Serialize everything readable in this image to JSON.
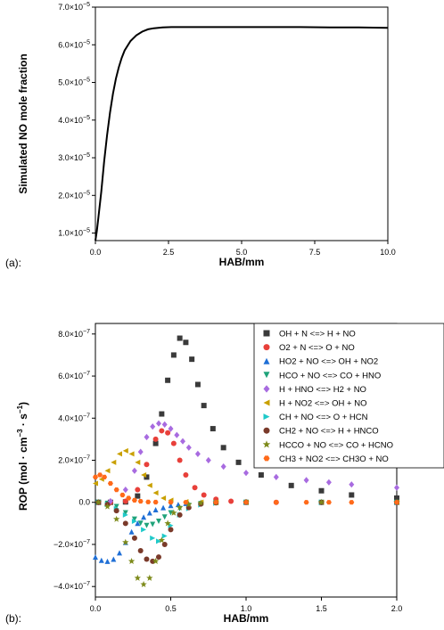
{
  "chart_data": [
    {
      "type": "line",
      "panel_label": "(a):",
      "xlabel": "HAB/mm",
      "ylabel": "Simulated NO mole fraction",
      "xlim": [
        0,
        10
      ],
      "ylim": [
        8e-06,
        7e-05
      ],
      "x_ticks": [
        0.0,
        2.5,
        5.0,
        7.5,
        10.0
      ],
      "x_tick_labels": [
        "0.0",
        "2.5",
        "5.0",
        "7.5",
        "10.0"
      ],
      "y_ticks": [
        1e-05,
        2e-05,
        3e-05,
        4e-05,
        5e-05,
        6e-05,
        7e-05
      ],
      "y_tick_labels": [
        {
          "mant": "1.0×10",
          "exp": "−5"
        },
        {
          "mant": "2.0×10",
          "exp": "−5"
        },
        {
          "mant": "3.0×10",
          "exp": "−5"
        },
        {
          "mant": "4.0×10",
          "exp": "−5"
        },
        {
          "mant": "5.0×10",
          "exp": "−5"
        },
        {
          "mant": "6.0×10",
          "exp": "−5"
        },
        {
          "mant": "7.0×10",
          "exp": "−5"
        }
      ],
      "grid": false,
      "series": [
        {
          "color": "#000000",
          "x": [
            0,
            0.05,
            0.1,
            0.2,
            0.3,
            0.4,
            0.5,
            0.6,
            0.7,
            0.8,
            0.9,
            1.0,
            1.2,
            1.4,
            1.6,
            1.8,
            2.0,
            2.3,
            2.6,
            3.0,
            3.5,
            4.0,
            5.0,
            6.0,
            7.0,
            8.0,
            9.0,
            10.0
          ],
          "y": [
            8e-06,
            1.05e-05,
            1.4e-05,
            2.1e-05,
            2.9e-05,
            3.6e-05,
            4.2e-05,
            4.7e-05,
            5.1e-05,
            5.4e-05,
            5.65e-05,
            5.85e-05,
            6.1e-05,
            6.25e-05,
            6.35e-05,
            6.41e-05,
            6.44e-05,
            6.46e-05,
            6.47e-05,
            6.47e-05,
            6.47e-05,
            6.47e-05,
            6.47e-05,
            6.47e-05,
            6.47e-05,
            6.46e-05,
            6.46e-05,
            6.45e-05
          ]
        }
      ]
    },
    {
      "type": "scatter",
      "panel_label": "(b):",
      "xlabel": "HAB/mm",
      "ylabel_parts": {
        "pre": "ROP (mol · cm",
        "sup1": "−3",
        "mid": " · s",
        "sup2": "−1",
        "post": ")"
      },
      "xlim": [
        0,
        2
      ],
      "ylim": [
        -4.5e-07,
        8.5e-07
      ],
      "x_ticks": [
        0.0,
        0.5,
        1.0,
        1.5,
        2.0
      ],
      "x_tick_labels": [
        "0.0",
        "0.5",
        "1.0",
        "1.5",
        "2.0"
      ],
      "y_ticks": [
        -4e-07,
        -2e-07,
        0,
        2e-07,
        4e-07,
        6e-07,
        8e-07
      ],
      "y_tick_labels": [
        {
          "mant": "−4.0×10",
          "exp": "−7"
        },
        {
          "mant": "−2.0×10",
          "exp": "−7"
        },
        {
          "mant": "0.0",
          "exp": ""
        },
        {
          "mant": "2.0×10",
          "exp": "−7"
        },
        {
          "mant": "4.0×10",
          "exp": "−7"
        },
        {
          "mant": "6.0×10",
          "exp": "−7"
        },
        {
          "mant": "8.0×10",
          "exp": "−7"
        }
      ],
      "grid": false,
      "legend_position": "top-right",
      "series": [
        {
          "name": "OH + N <=> H + NO",
          "color": "#3a3a3a",
          "marker": "square",
          "x": [
            0.02,
            0.1,
            0.2,
            0.28,
            0.34,
            0.4,
            0.44,
            0.48,
            0.52,
            0.56,
            0.6,
            0.64,
            0.68,
            0.72,
            0.78,
            0.85,
            0.95,
            1.1,
            1.3,
            1.5,
            1.7,
            2.0
          ],
          "y": [
            0,
            0,
            2e-09,
            3e-08,
            1.2e-07,
            2.8e-07,
            4.2e-07,
            5.8e-07,
            7e-07,
            7.8e-07,
            7.6e-07,
            6.8e-07,
            5.6e-07,
            4.6e-07,
            3.5e-07,
            2.6e-07,
            1.9e-07,
            1.3e-07,
            8e-08,
            5.5e-08,
            3.5e-08,
            2e-08
          ]
        },
        {
          "name": "O2 + N <=> O + NO",
          "color": "#e8403a",
          "marker": "circle",
          "x": [
            0.02,
            0.1,
            0.2,
            0.28,
            0.34,
            0.4,
            0.44,
            0.48,
            0.52,
            0.56,
            0.6,
            0.66,
            0.72,
            0.8,
            0.9,
            1.0,
            1.2,
            1.5,
            2.0
          ],
          "y": [
            0,
            0,
            5e-09,
            6e-08,
            1.8e-07,
            3e-07,
            3.4e-07,
            3.3e-07,
            2.8e-07,
            2e-07,
            1.3e-07,
            7e-08,
            3.5e-08,
            1.5e-08,
            5e-09,
            2e-09,
            0,
            0,
            0
          ]
        },
        {
          "name": "HO2 + NO <=> OH + NO2",
          "color": "#1f6fd6",
          "marker": "triangle-up",
          "x": [
            0.0,
            0.04,
            0.08,
            0.12,
            0.16,
            0.2,
            0.24,
            0.28,
            0.32,
            0.36,
            0.4,
            0.45,
            0.5,
            0.55,
            0.6,
            0.7,
            0.8,
            1.0,
            1.5,
            2.0
          ],
          "y": [
            -2.6e-07,
            -2.75e-07,
            -2.8e-07,
            -2.7e-07,
            -2.4e-07,
            -1.9e-07,
            -1.4e-07,
            -1e-07,
            -7e-08,
            -5e-08,
            -3.5e-08,
            -2.5e-08,
            -1.5e-08,
            -1e-08,
            -5e-09,
            -2e-09,
            0,
            0,
            0,
            0
          ]
        },
        {
          "name": "HCO + NO <=> CO + HNO",
          "color": "#1fa37a",
          "marker": "triangle-down",
          "x": [
            0.02,
            0.08,
            0.14,
            0.2,
            0.26,
            0.3,
            0.34,
            0.38,
            0.42,
            0.46,
            0.5,
            0.56,
            0.62,
            0.7,
            0.8,
            1.0,
            1.5,
            2.0
          ],
          "y": [
            0,
            -5e-09,
            -2e-08,
            -5e-08,
            -8e-08,
            -1e-07,
            -1.1e-07,
            -1.05e-07,
            -9e-08,
            -7e-08,
            -5e-08,
            -3e-08,
            -1.5e-08,
            -6e-09,
            -2e-09,
            0,
            0,
            0
          ]
        },
        {
          "name": "H + HNO <=> H2 + NO",
          "color": "#a86be0",
          "marker": "diamond",
          "x": [
            0.02,
            0.1,
            0.2,
            0.26,
            0.3,
            0.34,
            0.38,
            0.42,
            0.46,
            0.5,
            0.54,
            0.58,
            0.62,
            0.68,
            0.75,
            0.85,
            1.0,
            1.2,
            1.4,
            1.55,
            1.7,
            2.0
          ],
          "y": [
            0,
            5e-09,
            6e-08,
            1.5e-07,
            2.4e-07,
            3.1e-07,
            3.6e-07,
            3.75e-07,
            3.7e-07,
            3.5e-07,
            3.2e-07,
            2.9e-07,
            2.6e-07,
            2.3e-07,
            2e-07,
            1.7e-07,
            1.4e-07,
            1.2e-07,
            1.05e-07,
            9.5e-08,
            8.5e-08,
            7e-08
          ]
        },
        {
          "name": "H + NO2 <=> OH + NO",
          "color": "#c9a000",
          "marker": "triangle-left",
          "x": [
            0.0,
            0.04,
            0.08,
            0.12,
            0.16,
            0.2,
            0.24,
            0.28,
            0.32,
            0.36,
            0.4,
            0.45,
            0.5,
            0.6,
            0.7,
            0.8,
            1.0,
            1.5,
            2.0
          ],
          "y": [
            9e-08,
            1.1e-07,
            1.5e-07,
            1.9e-07,
            2.3e-07,
            2.45e-07,
            2.3e-07,
            1.9e-07,
            1.3e-07,
            8e-08,
            4.5e-08,
            2e-08,
            1e-08,
            3e-09,
            1e-09,
            0,
            0,
            0,
            0
          ]
        },
        {
          "name": "CH + NO <=> O + HCN",
          "color": "#1fc9c9",
          "marker": "triangle-right",
          "x": [
            0.02,
            0.08,
            0.14,
            0.2,
            0.26,
            0.32,
            0.38,
            0.42,
            0.46,
            0.5,
            0.56,
            0.62,
            0.7,
            0.8,
            1.0,
            1.5,
            2.0
          ],
          "y": [
            0,
            -1e-08,
            -3e-08,
            -6e-08,
            -9e-08,
            -1.3e-07,
            -1.7e-07,
            -1.85e-07,
            -1.6e-07,
            -1.1e-07,
            -6e-08,
            -3e-08,
            -1.2e-08,
            -4e-09,
            0,
            0,
            0
          ]
        },
        {
          "name": "CH2 + NO <=> H + HNCO",
          "color": "#7a3a2a",
          "marker": "circle",
          "x": [
            0.02,
            0.08,
            0.14,
            0.2,
            0.26,
            0.3,
            0.34,
            0.38,
            0.42,
            0.46,
            0.5,
            0.56,
            0.62,
            0.7,
            0.8,
            1.0,
            1.5,
            2.0
          ],
          "y": [
            0,
            -1e-08,
            -4e-08,
            -1e-07,
            -1.7e-07,
            -2.3e-07,
            -2.7e-07,
            -2.8e-07,
            -2.6e-07,
            -2e-07,
            -1.3e-07,
            -6e-08,
            -2.5e-08,
            -8e-09,
            -2e-09,
            0,
            0,
            0
          ]
        },
        {
          "name": "HCCO + NO <=> CO + HCNO",
          "color": "#7d8a1a",
          "marker": "star",
          "x": [
            0.02,
            0.08,
            0.14,
            0.2,
            0.24,
            0.28,
            0.32,
            0.36,
            0.4,
            0.44,
            0.48,
            0.52,
            0.56,
            0.62,
            0.7,
            0.8,
            1.0,
            1.5,
            2.0
          ],
          "y": [
            0,
            -2e-08,
            -8e-08,
            -1.9e-07,
            -2.8e-07,
            -3.6e-07,
            -3.9e-07,
            -3.6e-07,
            -2.8e-07,
            -1.8e-07,
            -1e-07,
            -5e-08,
            -2.5e-08,
            -1e-08,
            -3e-09,
            -1e-09,
            0,
            0,
            0
          ]
        },
        {
          "name": "CH3 + NO2 <=> CH3O + NO",
          "color": "#ff6a1a",
          "marker": "hexagon",
          "x": [
            0.0,
            0.03,
            0.06,
            0.1,
            0.14,
            0.18,
            0.22,
            0.26,
            0.3,
            0.35,
            0.4,
            0.5,
            0.6,
            0.8,
            1.0,
            1.2,
            1.4,
            1.55,
            1.7,
            2.0
          ],
          "y": [
            1.2e-07,
            1.3e-07,
            1.2e-07,
            9e-08,
            6e-08,
            3.5e-08,
            2e-08,
            1e-08,
            5e-09,
            2e-09,
            1e-09,
            0,
            0,
            0,
            0,
            0,
            0,
            0,
            0,
            0
          ]
        }
      ]
    }
  ]
}
